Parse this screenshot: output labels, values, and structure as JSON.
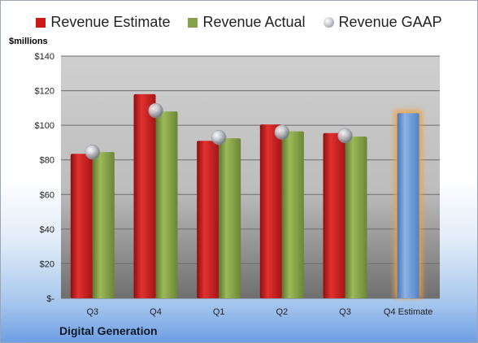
{
  "company": "Digital Generation",
  "chart_data": {
    "type": "bar",
    "unit_label": "$millions",
    "categories": [
      "Q3",
      "Q4",
      "Q1",
      "Q2",
      "Q3",
      "Q4 Estimate"
    ],
    "series": [
      {
        "name": "Revenue Estimate",
        "color": "#cc1a1a",
        "values": [
          83.5,
          118,
          91,
          100.5,
          95.5,
          null
        ]
      },
      {
        "name": "Revenue Actual",
        "color": "#88a24a",
        "values": [
          84.5,
          108,
          92.5,
          96.5,
          93.5,
          107
        ]
      },
      {
        "name": "Revenue GAAP",
        "color": "#b8bcc2",
        "values": [
          84.5,
          108.5,
          93,
          96,
          94,
          null
        ]
      }
    ],
    "highlight": {
      "category_index": 5,
      "color": "#6f9bd6",
      "glow": "#f0a040"
    },
    "y_ticks": [
      "$-",
      "$20",
      "$40",
      "$60",
      "$80",
      "$100",
      "$120",
      "$140"
    ],
    "ylim": [
      0,
      140
    ],
    "y_step": 20,
    "grid": true,
    "legend_position": "top"
  }
}
